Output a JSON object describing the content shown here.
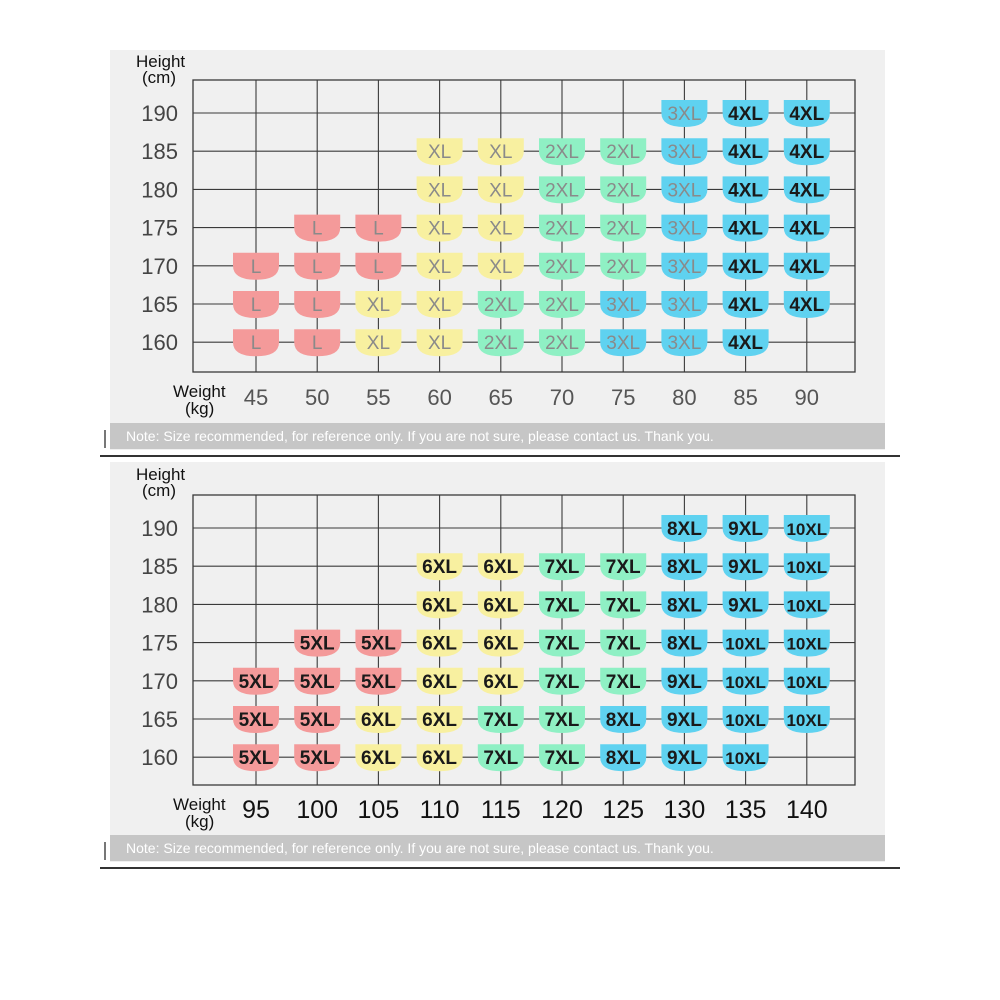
{
  "colors": {
    "L": "#f49a9a",
    "XL": "#f8f0a0",
    "2XL": "#8ff0c4",
    "3XL": "#5fd2f0",
    "4XL": "#5fd2f0",
    "5XL": "#f49a9a",
    "6XL": "#f8f0a0",
    "7XL": "#8ff0c4",
    "8XL": "#5fd2f0",
    "9XL": "#5fd2f0",
    "10XL": "#5fd2f0"
  },
  "chart_data": [
    {
      "type": "table",
      "xlabel_line1": "Weight",
      "xlabel_line2": "(kg)",
      "ylabel_line1": "Height",
      "ylabel_line2": "(cm)",
      "x": [
        "45",
        "50",
        "55",
        "60",
        "65",
        "70",
        "75",
        "80",
        "85",
        "90"
      ],
      "y": [
        "190",
        "185",
        "180",
        "175",
        "170",
        "165",
        "160"
      ],
      "grid": true,
      "cells": [
        [
          "",
          "",
          "",
          "",
          "",
          "",
          "",
          "3XL",
          "4XL",
          "4XL"
        ],
        [
          "",
          "",
          "",
          "XL",
          "XL",
          "2XL",
          "2XL",
          "3XL",
          "4XL",
          "4XL"
        ],
        [
          "",
          "",
          "",
          "XL",
          "XL",
          "2XL",
          "2XL",
          "3XL",
          "4XL",
          "4XL"
        ],
        [
          "",
          "L",
          "L",
          "XL",
          "XL",
          "2XL",
          "2XL",
          "3XL",
          "4XL",
          "4XL"
        ],
        [
          "L",
          "L",
          "L",
          "XL",
          "XL",
          "2XL",
          "2XL",
          "3XL",
          "4XL",
          "4XL"
        ],
        [
          "L",
          "L",
          "XL",
          "XL",
          "2XL",
          "2XL",
          "3XL",
          "3XL",
          "4XL",
          "4XL"
        ],
        [
          "L",
          "L",
          "XL",
          "XL",
          "2XL",
          "2XL",
          "3XL",
          "3XL",
          "4XL",
          ""
        ]
      ],
      "note": "Note: Size recommended, for reference only. If you are not sure, please contact us. Thank you."
    },
    {
      "type": "table",
      "xlabel_line1": "Weight",
      "xlabel_line2": "(kg)",
      "ylabel_line1": "Height",
      "ylabel_line2": "(cm)",
      "x": [
        "95",
        "100",
        "105",
        "110",
        "115",
        "120",
        "125",
        "130",
        "135",
        "140"
      ],
      "y": [
        "190",
        "185",
        "180",
        "175",
        "170",
        "165",
        "160"
      ],
      "grid": true,
      "cells": [
        [
          "",
          "",
          "",
          "",
          "",
          "",
          "",
          "8XL",
          "9XL",
          "10XL"
        ],
        [
          "",
          "",
          "",
          "6XL",
          "6XL",
          "7XL",
          "7XL",
          "8XL",
          "9XL",
          "10XL"
        ],
        [
          "",
          "",
          "",
          "6XL",
          "6XL",
          "7XL",
          "7XL",
          "8XL",
          "9XL",
          "10XL"
        ],
        [
          "",
          "5XL",
          "5XL",
          "6XL",
          "6XL",
          "7XL",
          "7XL",
          "8XL",
          "10XL",
          "10XL"
        ],
        [
          "5XL",
          "5XL",
          "5XL",
          "6XL",
          "6XL",
          "7XL",
          "7XL",
          "9XL",
          "10XL",
          "10XL"
        ],
        [
          "5XL",
          "5XL",
          "6XL",
          "6XL",
          "7XL",
          "7XL",
          "8XL",
          "9XL",
          "10XL",
          "10XL"
        ],
        [
          "5XL",
          "5XL",
          "6XL",
          "6XL",
          "7XL",
          "7XL",
          "8XL",
          "9XL",
          "10XL",
          ""
        ]
      ],
      "note": "Note: Size recommended, for reference only. If you are not sure, please contact us. Thank you."
    }
  ]
}
